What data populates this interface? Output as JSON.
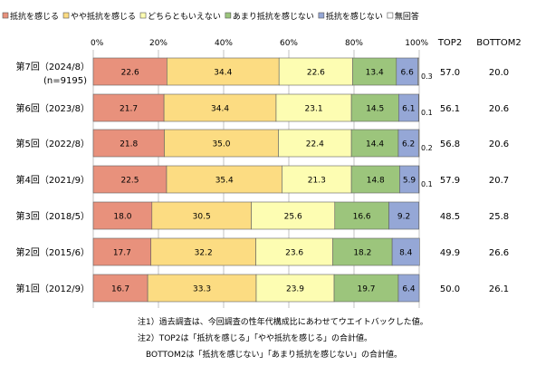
{
  "chart_data": {
    "type": "bar",
    "stacked": true,
    "orientation": "horizontal",
    "legend_position": "top",
    "xlim": [
      0,
      100
    ],
    "x_ticks": [
      "0%",
      "20%",
      "40%",
      "60%",
      "80%",
      "100%"
    ],
    "column_headers": [
      "TOP2",
      "BOTTOM2"
    ],
    "categories": [
      {
        "label": "第7回（2024/8）",
        "sub": "(n=9195)"
      },
      {
        "label": "第6回（2023/8）",
        "sub": ""
      },
      {
        "label": "第5回（2022/8）",
        "sub": ""
      },
      {
        "label": "第4回（2021/9）",
        "sub": ""
      },
      {
        "label": "第3回（2018/5）",
        "sub": ""
      },
      {
        "label": "第2回（2015/6）",
        "sub": ""
      },
      {
        "label": "第1回（2012/9）",
        "sub": ""
      }
    ],
    "series": [
      {
        "name": "抵抗を感じる",
        "color": "#e8917c",
        "values": [
          22.6,
          21.7,
          21.8,
          22.5,
          18.0,
          17.7,
          16.7
        ],
        "labels": [
          "22.6",
          "21.7",
          "21.8",
          "22.5",
          "18.0",
          "17.7",
          "16.7"
        ]
      },
      {
        "name": "やや抵抗を感じる",
        "color": "#fcdc82",
        "values": [
          34.4,
          34.4,
          35.0,
          35.4,
          30.5,
          32.2,
          33.3
        ],
        "labels": [
          "34.4",
          "34.4",
          "35.0",
          "35.4",
          "30.5",
          "32.2",
          "33.3"
        ]
      },
      {
        "name": "どちらともいえない",
        "color": "#fdfdb2",
        "values": [
          22.6,
          23.1,
          22.4,
          21.3,
          25.6,
          23.6,
          23.9
        ],
        "labels": [
          "22.6",
          "23.1",
          "22.4",
          "21.3",
          "25.6",
          "23.6",
          "23.9"
        ]
      },
      {
        "name": "あまり抵抗を感じない",
        "color": "#9cc57c",
        "values": [
          13.4,
          14.5,
          14.4,
          14.8,
          16.6,
          18.2,
          19.7
        ],
        "labels": [
          "13.4",
          "14.5",
          "14.4",
          "14.8",
          "16.6",
          "18.2",
          "19.7"
        ]
      },
      {
        "name": "抵抗を感じない",
        "color": "#95a7d6",
        "values": [
          6.6,
          6.1,
          6.2,
          5.9,
          9.2,
          8.4,
          6.4
        ],
        "labels": [
          "6.6",
          "6.1",
          "6.2",
          "5.9",
          "9.2",
          "8.4",
          "6.4"
        ]
      },
      {
        "name": "無回答",
        "color": "#ffffff",
        "values": [
          0.3,
          0.1,
          0.2,
          0.1,
          0,
          0,
          0
        ],
        "labels": [
          "0.3",
          "0.1",
          "0.2",
          "0.1",
          "",
          "",
          ""
        ]
      }
    ],
    "top2": [
      "57.0",
      "56.1",
      "56.8",
      "57.9",
      "48.5",
      "49.9",
      "50.0"
    ],
    "bottom2": [
      "20.0",
      "20.6",
      "20.6",
      "20.7",
      "25.8",
      "26.6",
      "26.1"
    ]
  },
  "notes": [
    "注1）過去調査は、今回調査の性年代構成比にあわせてウエイトバックした値。",
    "注2）TOP2は「抵抗を感じる」「やや抵抗を感じる」の合計値。",
    "BOTTOM2は「抵抗を感じない」「あまり抵抗を感じない」の合計値。"
  ]
}
